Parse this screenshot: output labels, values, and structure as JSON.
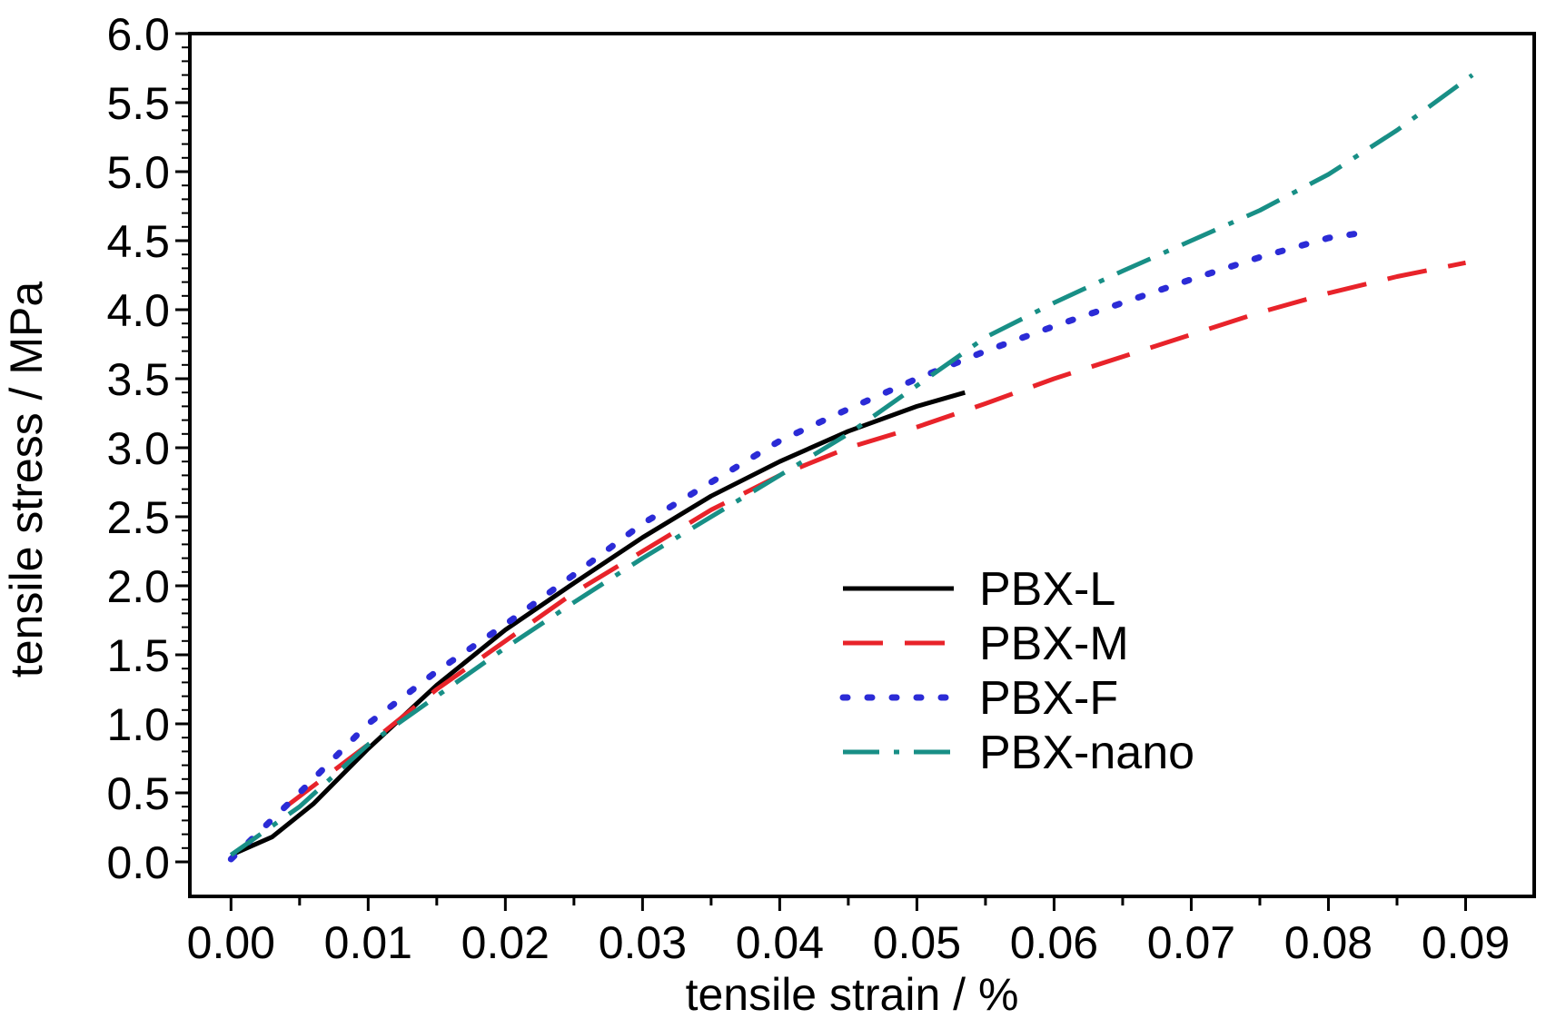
{
  "chart_data": {
    "type": "line",
    "title": "",
    "xlabel": "tensile strain / %",
    "ylabel": "tensile stress / MPa",
    "xlim": [
      -0.003,
      0.095
    ],
    "ylim": [
      -0.25,
      6.0
    ],
    "x_ticks": [
      "0.00",
      "0.01",
      "0.02",
      "0.03",
      "0.04",
      "0.05",
      "0.06",
      "0.07",
      "0.08",
      "0.09"
    ],
    "y_ticks": [
      "0.0",
      "0.5",
      "1.0",
      "1.5",
      "2.0",
      "2.5",
      "3.0",
      "3.5",
      "4.0",
      "4.5",
      "5.0",
      "5.5",
      "6.0"
    ],
    "grid": false,
    "legend_position": "center-right",
    "series": [
      {
        "name": "PBX-L",
        "color": "#000000",
        "style": "solid",
        "x": [
          0.0,
          0.003,
          0.006,
          0.01,
          0.015,
          0.02,
          0.025,
          0.03,
          0.035,
          0.04,
          0.045,
          0.05,
          0.0535
        ],
        "y": [
          0.05,
          0.18,
          0.42,
          0.82,
          1.28,
          1.68,
          2.02,
          2.35,
          2.65,
          2.9,
          3.12,
          3.3,
          3.4
        ]
      },
      {
        "name": "PBX-M",
        "color": "#e8232a",
        "style": "dashed",
        "x": [
          0.004,
          0.01,
          0.015,
          0.02,
          0.025,
          0.03,
          0.035,
          0.04,
          0.045,
          0.05,
          0.055,
          0.06,
          0.065,
          0.07,
          0.075,
          0.08,
          0.085,
          0.09
        ],
        "y": [
          0.4,
          0.85,
          1.25,
          1.6,
          1.95,
          2.25,
          2.55,
          2.8,
          3.0,
          3.15,
          3.32,
          3.5,
          3.66,
          3.82,
          3.98,
          4.12,
          4.24,
          4.34
        ]
      },
      {
        "name": "PBX-F",
        "color": "#2b2bd6",
        "style": "dotted",
        "x": [
          0.0,
          0.005,
          0.01,
          0.015,
          0.02,
          0.025,
          0.03,
          0.035,
          0.04,
          0.045,
          0.05,
          0.055,
          0.06,
          0.065,
          0.07,
          0.075,
          0.08,
          0.082
        ],
        "y": [
          0.02,
          0.5,
          1.0,
          1.38,
          1.72,
          2.08,
          2.45,
          2.75,
          3.05,
          3.28,
          3.5,
          3.7,
          3.88,
          4.05,
          4.22,
          4.38,
          4.52,
          4.55
        ]
      },
      {
        "name": "PBX-nano",
        "color": "#188f86",
        "style": "dashdot",
        "x": [
          0.0,
          0.005,
          0.01,
          0.015,
          0.02,
          0.025,
          0.03,
          0.035,
          0.04,
          0.045,
          0.05,
          0.055,
          0.06,
          0.065,
          0.07,
          0.075,
          0.08,
          0.085,
          0.0905
        ],
        "y": [
          0.05,
          0.4,
          0.85,
          1.2,
          1.55,
          1.88,
          2.2,
          2.5,
          2.8,
          3.1,
          3.45,
          3.8,
          4.05,
          4.28,
          4.5,
          4.72,
          4.98,
          5.3,
          5.7
        ]
      }
    ]
  }
}
